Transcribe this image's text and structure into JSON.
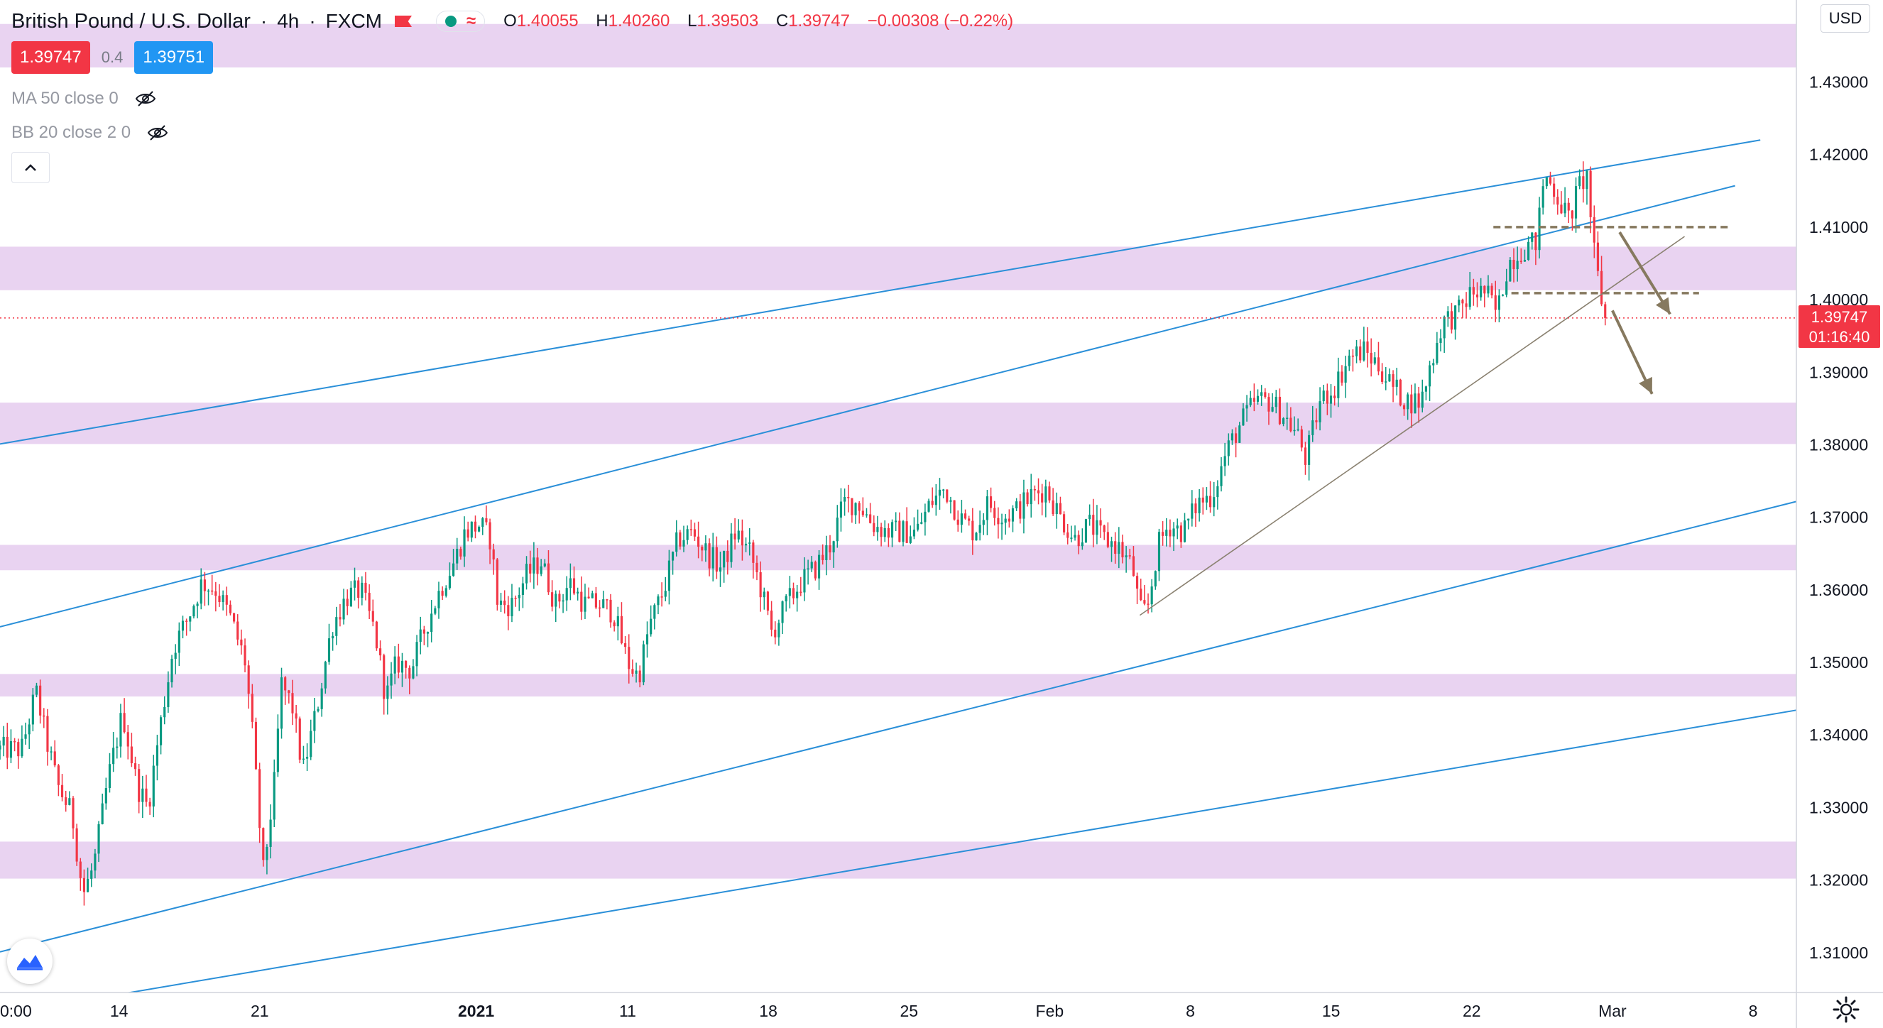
{
  "symbol": {
    "title": "British Pound / U.S. Dollar",
    "timeframe": "4h",
    "exchange": "FXCM",
    "ohlc": {
      "open_label": "O",
      "open": "1.40055",
      "high_label": "H",
      "high": "1.40260",
      "low_label": "L",
      "low": "1.39503",
      "close_label": "C",
      "close": "1.39747",
      "change": "−0.00308 (−0.22%)"
    }
  },
  "quote": {
    "bid": "1.39747",
    "spread": "0.4",
    "ask": "1.39751"
  },
  "indicators": [
    {
      "label": "MA 50 close 0"
    },
    {
      "label": "BB 20 close 2 0"
    }
  ],
  "axis": {
    "currency": "USD",
    "last_price": "1.39747",
    "countdown": "01:16:40"
  },
  "colors": {
    "up": "#089981",
    "down": "#f23645",
    "zone": "#e1c4ec",
    "channel": "#2a8fd8",
    "trendline": "#8a8170",
    "annotation": "#86795f",
    "last_price": "#f23645"
  },
  "icons": {
    "flag": "flag-icon",
    "status": "market-status-icon",
    "eye": "eye-off-icon",
    "collapse": "chevron-up-icon",
    "logo": "tradingview-logo-icon",
    "settings": "gear-icon"
  },
  "chart_data": {
    "type": "candlestick",
    "title": "British Pound / U.S. Dollar",
    "interval": "4h",
    "y_ticks": [
      1.31,
      1.32,
      1.33,
      1.34,
      1.35,
      1.36,
      1.37,
      1.38,
      1.39,
      1.4,
      1.41,
      1.42,
      1.43
    ],
    "y_tick_labels": [
      "1.31000",
      "1.32000",
      "1.33000",
      "1.34000",
      "1.35000",
      "1.36000",
      "1.37000",
      "1.38000",
      "1.39000",
      "1.40000",
      "1.41000",
      "1.42000",
      "1.43000"
    ],
    "ylim": [
      1.3045,
      1.4413
    ],
    "x_ticks": [
      {
        "label": "0:00",
        "bar": 0
      },
      {
        "label": "14",
        "bar": 33
      },
      {
        "label": "21",
        "bar": 72
      },
      {
        "label": "2021",
        "bar": 132,
        "bold": true
      },
      {
        "label": "11",
        "bar": 174
      },
      {
        "label": "18",
        "bar": 213
      },
      {
        "label": "25",
        "bar": 252
      },
      {
        "label": "Feb",
        "bar": 291
      },
      {
        "label": "8",
        "bar": 330
      },
      {
        "label": "15",
        "bar": 369
      },
      {
        "label": "22",
        "bar": 408
      },
      {
        "label": "Mar",
        "bar": 447
      },
      {
        "label": "8",
        "bar": 486
      }
    ],
    "x_range_bars": [
      0,
      498
    ],
    "total_bars": 440,
    "close_path": [
      [
        0,
        1.338
      ],
      [
        6,
        1.338
      ],
      [
        10,
        1.346
      ],
      [
        13,
        1.339
      ],
      [
        16,
        1.333
      ],
      [
        20,
        1.329
      ],
      [
        23,
        1.318
      ],
      [
        26,
        1.322
      ],
      [
        30,
        1.334
      ],
      [
        34,
        1.343
      ],
      [
        38,
        1.333
      ],
      [
        41,
        1.33
      ],
      [
        44,
        1.34
      ],
      [
        48,
        1.352
      ],
      [
        52,
        1.356
      ],
      [
        56,
        1.361
      ],
      [
        60,
        1.36
      ],
      [
        64,
        1.356
      ],
      [
        68,
        1.35
      ],
      [
        70,
        1.34
      ],
      [
        73,
        1.321
      ],
      [
        76,
        1.333
      ],
      [
        78,
        1.347
      ],
      [
        81,
        1.344
      ],
      [
        84,
        1.335
      ],
      [
        88,
        1.344
      ],
      [
        92,
        1.355
      ],
      [
        96,
        1.359
      ],
      [
        100,
        1.36
      ],
      [
        104,
        1.354
      ],
      [
        107,
        1.345
      ],
      [
        110,
        1.35
      ],
      [
        114,
        1.349
      ],
      [
        118,
        1.355
      ],
      [
        122,
        1.36
      ],
      [
        126,
        1.364
      ],
      [
        129,
        1.368
      ],
      [
        133,
        1.369
      ],
      [
        136,
        1.367
      ],
      [
        138,
        1.358
      ],
      [
        142,
        1.358
      ],
      [
        146,
        1.362
      ],
      [
        150,
        1.364
      ],
      [
        154,
        1.358
      ],
      [
        158,
        1.361
      ],
      [
        162,
        1.358
      ],
      [
        166,
        1.358
      ],
      [
        170,
        1.357
      ],
      [
        174,
        1.35
      ],
      [
        177,
        1.348
      ],
      [
        180,
        1.355
      ],
      [
        184,
        1.36
      ],
      [
        188,
        1.367
      ],
      [
        192,
        1.368
      ],
      [
        196,
        1.365
      ],
      [
        200,
        1.363
      ],
      [
        204,
        1.368
      ],
      [
        208,
        1.365
      ],
      [
        211,
        1.36
      ],
      [
        214,
        1.354
      ],
      [
        218,
        1.358
      ],
      [
        222,
        1.361
      ],
      [
        226,
        1.363
      ],
      [
        230,
        1.366
      ],
      [
        234,
        1.372
      ],
      [
        238,
        1.372
      ],
      [
        242,
        1.369
      ],
      [
        246,
        1.368
      ],
      [
        250,
        1.368
      ],
      [
        254,
        1.368
      ],
      [
        258,
        1.372
      ],
      [
        262,
        1.374
      ],
      [
        266,
        1.37
      ],
      [
        270,
        1.368
      ],
      [
        274,
        1.372
      ],
      [
        278,
        1.37
      ],
      [
        282,
        1.371
      ],
      [
        286,
        1.373
      ],
      [
        290,
        1.374
      ],
      [
        294,
        1.37
      ],
      [
        298,
        1.367
      ],
      [
        302,
        1.369
      ],
      [
        306,
        1.367
      ],
      [
        310,
        1.366
      ],
      [
        314,
        1.363
      ],
      [
        316,
        1.357
      ],
      [
        318,
        1.357
      ],
      [
        321,
        1.366
      ],
      [
        324,
        1.369
      ],
      [
        328,
        1.368
      ],
      [
        332,
        1.372
      ],
      [
        336,
        1.373
      ],
      [
        340,
        1.379
      ],
      [
        344,
        1.383
      ],
      [
        348,
        1.386
      ],
      [
        352,
        1.386
      ],
      [
        356,
        1.384
      ],
      [
        360,
        1.381
      ],
      [
        362,
        1.378
      ],
      [
        366,
        1.386
      ],
      [
        370,
        1.388
      ],
      [
        374,
        1.392
      ],
      [
        378,
        1.393
      ],
      [
        382,
        1.391
      ],
      [
        386,
        1.388
      ],
      [
        390,
        1.386
      ],
      [
        394,
        1.386
      ],
      [
        396,
        1.39
      ],
      [
        400,
        1.397
      ],
      [
        404,
        1.398
      ],
      [
        408,
        1.401
      ],
      [
        412,
        1.401
      ],
      [
        415,
        1.398
      ],
      [
        418,
        1.405
      ],
      [
        422,
        1.407
      ],
      [
        426,
        1.408
      ],
      [
        428,
        1.417
      ],
      [
        430,
        1.416
      ],
      [
        432,
        1.414
      ],
      [
        435,
        1.411
      ],
      [
        438,
        1.416
      ],
      [
        440,
        1.417
      ],
      [
        442,
        1.406
      ],
      [
        444,
        1.4
      ],
      [
        445,
        1.3975
      ]
    ],
    "last_price": 1.39747,
    "zones": [
      {
        "from": 1.432,
        "to": 1.438
      },
      {
        "from": 1.4013,
        "to": 1.4073
      },
      {
        "from": 1.3801,
        "to": 1.3858
      },
      {
        "from": 1.3627,
        "to": 1.3662
      },
      {
        "from": 1.3453,
        "to": 1.3484
      },
      {
        "from": 1.3202,
        "to": 1.3253
      }
    ],
    "channel_lines": [
      {
        "from": [
          0,
          1.3801
        ],
        "to": [
          488,
          1.422
        ]
      },
      {
        "from": [
          0,
          1.3549
        ],
        "to": [
          481,
          1.4157
        ]
      },
      {
        "from": [
          0,
          1.3101
        ],
        "to": [
          499,
          1.3723
        ]
      },
      {
        "from": [
          10,
          1.3023
        ],
        "to": [
          499,
          1.3435
        ]
      }
    ],
    "trendline": {
      "from": [
        316,
        1.3565
      ],
      "to": [
        467,
        1.4087
      ]
    },
    "levels": [
      {
        "from": 414,
        "to": 479,
        "price": 1.41
      },
      {
        "from": 419,
        "to": 471,
        "price": 1.4009
      }
    ],
    "arrows": [
      {
        "from": [
          449,
          1.4093
        ],
        "to": [
          463,
          1.398
        ]
      },
      {
        "from": [
          447,
          1.3985
        ],
        "to": [
          458,
          1.387
        ]
      }
    ]
  }
}
